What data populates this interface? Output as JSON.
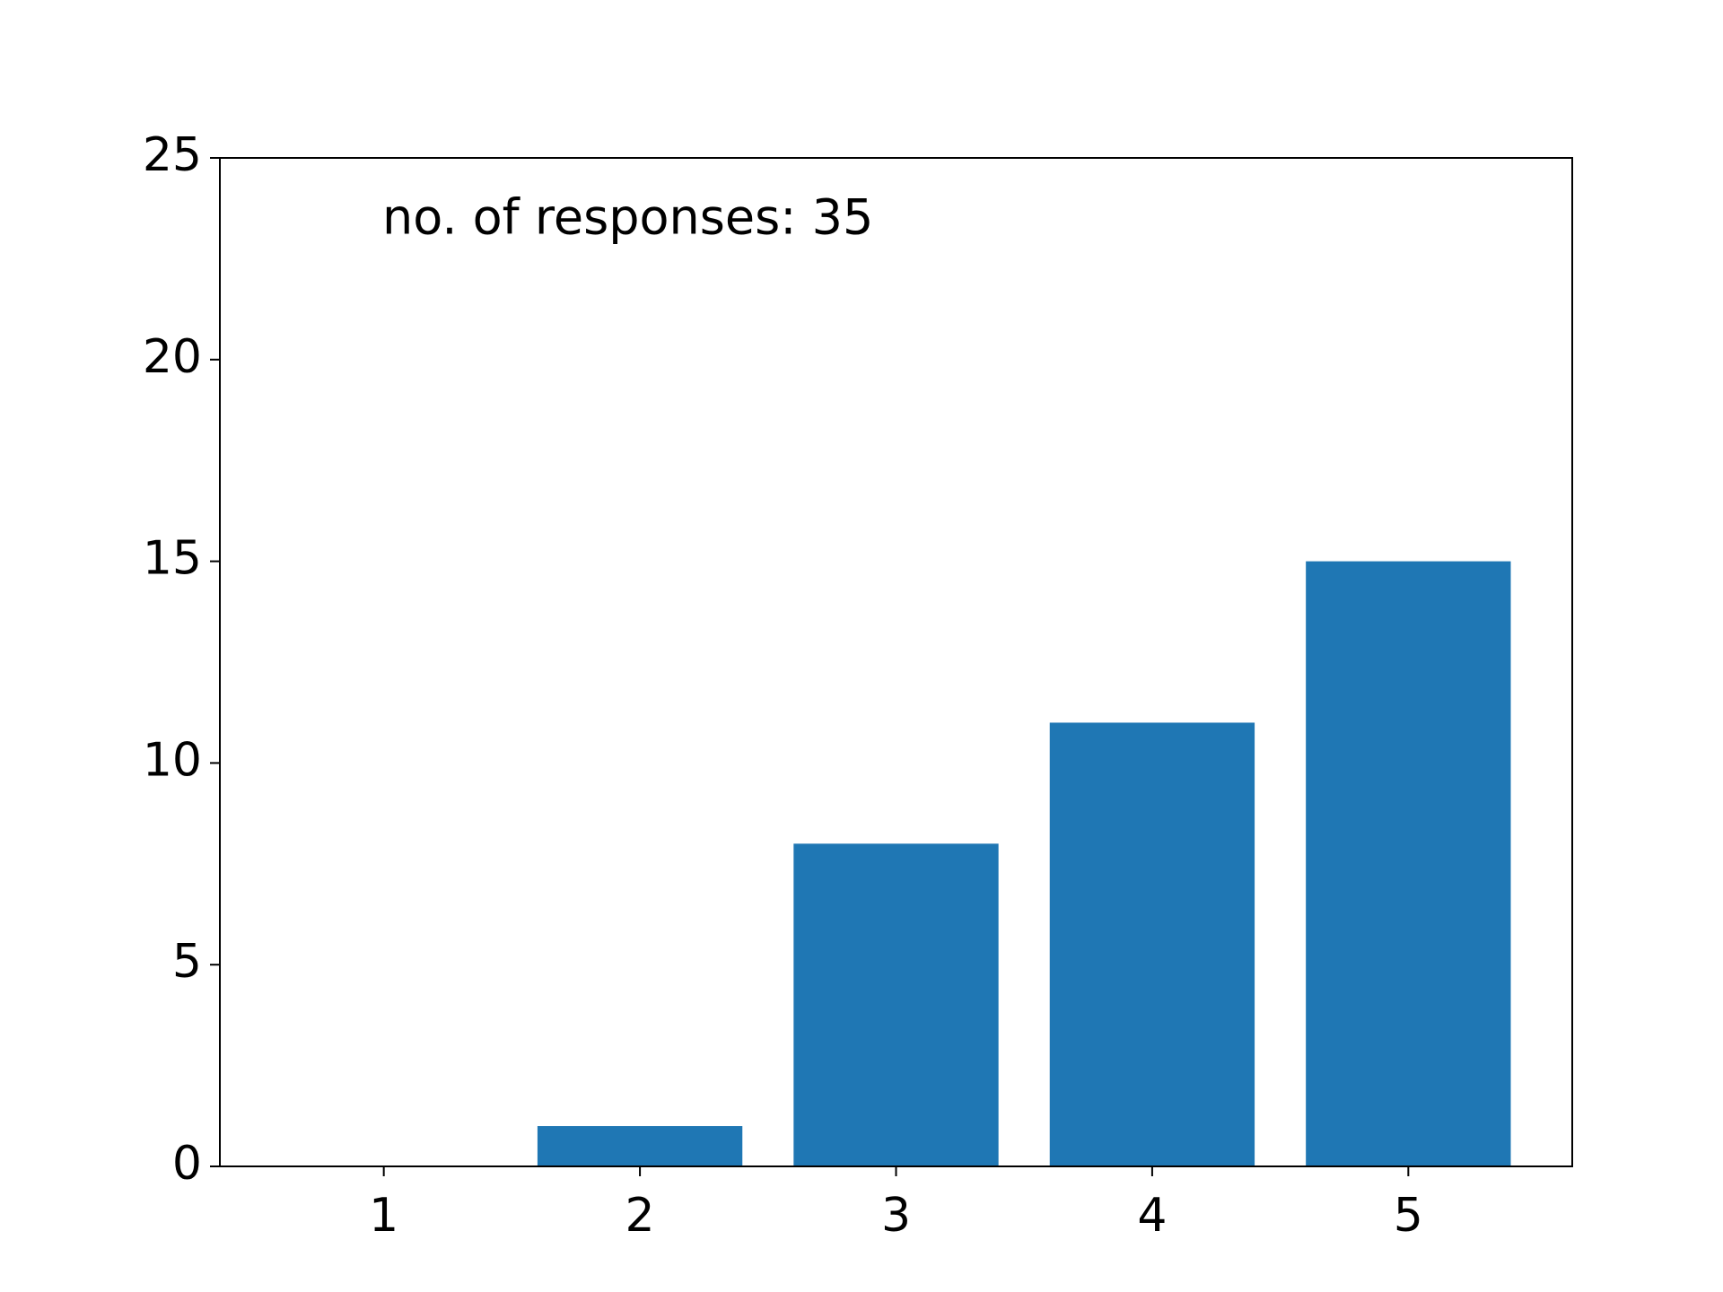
{
  "chart_data": {
    "type": "bar",
    "annotation": "no. of responses: 35",
    "x": [
      1,
      2,
      3,
      4,
      5
    ],
    "values": [
      0,
      1,
      8,
      11,
      15
    ],
    "color": "#1f77b4",
    "xlim": [
      0.36,
      5.64
    ],
    "xticks": [
      1,
      2,
      3,
      4,
      5
    ],
    "ylim": [
      0,
      25
    ],
    "yticks": [
      0,
      5,
      10,
      15,
      20,
      25
    ],
    "grid": false
  }
}
